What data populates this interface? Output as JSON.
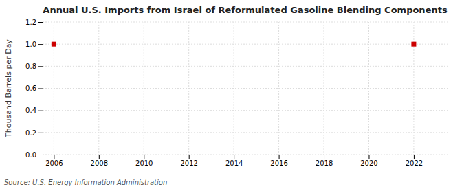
{
  "chart_data": {
    "type": "scatter",
    "title": "Annual U.S. Imports from Israel of Reformulated Gasoline Blending Components",
    "ylabel": "Thousand Barrels per Day",
    "source": "Source: U.S. Energy Information Administration",
    "x": [
      2006,
      2022
    ],
    "values": [
      1.0,
      1.0
    ],
    "color": "#cc0000",
    "marker": "square",
    "xlim": [
      2005.5,
      2023.5
    ],
    "ylim": [
      0.0,
      1.2
    ],
    "xticks": [
      2006,
      2008,
      2010,
      2012,
      2014,
      2016,
      2018,
      2020,
      2022
    ],
    "yticks": [
      {
        "value": 0.0,
        "label": "0.0"
      },
      0.2,
      0.4,
      0.6,
      0.8,
      {
        "value": 1.0,
        "label": "1.0"
      },
      1.2
    ],
    "grid": true
  }
}
